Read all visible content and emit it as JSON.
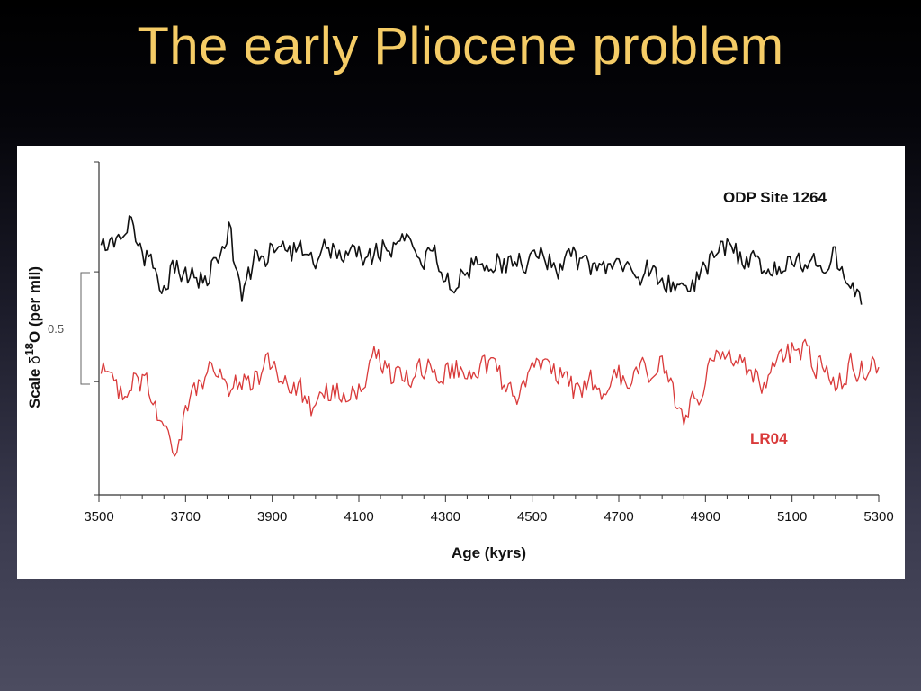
{
  "slide": {
    "title": "The early Pliocene problem",
    "background_top": "#000000",
    "background_bottom": "#4c4c60",
    "title_color": "#f5cc66"
  },
  "chart_data": {
    "type": "line",
    "xlabel": "Age (kyrs)",
    "ylabel_prefix": "Scale ",
    "ylabel_delta": "δ",
    "ylabel_sup": "18",
    "ylabel_suffix": "O (per mil)",
    "scale_bar_label": "0.5",
    "scale_bar_value": 0.5,
    "xlim": [
      3500,
      5300
    ],
    "ylim": [
      0,
      1.0
    ],
    "x_ticks": [
      "3500",
      "3700",
      "3900",
      "4100",
      "4300",
      "4500",
      "4700",
      "4900",
      "5100",
      "5300"
    ],
    "x_tick_values": [
      3500,
      3700,
      3900,
      4100,
      4300,
      4500,
      4700,
      4900,
      5100,
      5300
    ],
    "grid": false,
    "series": [
      {
        "name": "ODP Site 1264",
        "color": "#111111",
        "x_start": 3505,
        "x_end": 5260,
        "x_step": 5,
        "baseline": 0.72,
        "noise_amp": 0.055,
        "seed": 1264,
        "anchors": [
          [
            3505,
            0.72
          ],
          [
            3540,
            0.76
          ],
          [
            3575,
            0.84
          ],
          [
            3600,
            0.72
          ],
          [
            3640,
            0.63
          ],
          [
            3700,
            0.69
          ],
          [
            3745,
            0.63
          ],
          [
            3800,
            0.79
          ],
          [
            3830,
            0.61
          ],
          [
            3860,
            0.7
          ],
          [
            3900,
            0.73
          ],
          [
            3960,
            0.76
          ],
          [
            4000,
            0.71
          ],
          [
            4050,
            0.73
          ],
          [
            4100,
            0.72
          ],
          [
            4150,
            0.71
          ],
          [
            4215,
            0.78
          ],
          [
            4260,
            0.71
          ],
          [
            4310,
            0.64
          ],
          [
            4350,
            0.71
          ],
          [
            4400,
            0.69
          ],
          [
            4450,
            0.7
          ],
          [
            4500,
            0.72
          ],
          [
            4560,
            0.68
          ],
          [
            4600,
            0.73
          ],
          [
            4650,
            0.67
          ],
          [
            4700,
            0.66
          ],
          [
            4750,
            0.68
          ],
          [
            4800,
            0.63
          ],
          [
            4850,
            0.61
          ],
          [
            4900,
            0.69
          ],
          [
            4960,
            0.74
          ],
          [
            5020,
            0.7
          ],
          [
            5060,
            0.66
          ],
          [
            5100,
            0.71
          ],
          [
            5160,
            0.72
          ],
          [
            5210,
            0.68
          ],
          [
            5260,
            0.61
          ]
        ]
      },
      {
        "name": "LR04",
        "color": "#d93a3a",
        "x_start": 3505,
        "x_end": 5300,
        "x_step": 5,
        "baseline": 0.35,
        "noise_amp": 0.06,
        "seed": 404,
        "anchors": [
          [
            3505,
            0.37
          ],
          [
            3540,
            0.33
          ],
          [
            3580,
            0.35
          ],
          [
            3620,
            0.3
          ],
          [
            3645,
            0.2
          ],
          [
            3675,
            0.14
          ],
          [
            3710,
            0.29
          ],
          [
            3760,
            0.37
          ],
          [
            3800,
            0.35
          ],
          [
            3850,
            0.33
          ],
          [
            3900,
            0.38
          ],
          [
            3960,
            0.33
          ],
          [
            3995,
            0.24
          ],
          [
            4050,
            0.32
          ],
          [
            4100,
            0.34
          ],
          [
            4150,
            0.39
          ],
          [
            4200,
            0.35
          ],
          [
            4250,
            0.36
          ],
          [
            4300,
            0.38
          ],
          [
            4350,
            0.4
          ],
          [
            4400,
            0.37
          ],
          [
            4450,
            0.33
          ],
          [
            4500,
            0.35
          ],
          [
            4550,
            0.37
          ],
          [
            4600,
            0.34
          ],
          [
            4650,
            0.31
          ],
          [
            4700,
            0.36
          ],
          [
            4750,
            0.34
          ],
          [
            4800,
            0.38
          ],
          [
            4845,
            0.25
          ],
          [
            4875,
            0.26
          ],
          [
            4920,
            0.4
          ],
          [
            4960,
            0.43
          ],
          [
            5000,
            0.38
          ],
          [
            5040,
            0.3
          ],
          [
            5080,
            0.45
          ],
          [
            5120,
            0.44
          ],
          [
            5160,
            0.38
          ],
          [
            5200,
            0.35
          ],
          [
            5240,
            0.4
          ],
          [
            5270,
            0.39
          ],
          [
            5300,
            0.36
          ]
        ]
      }
    ],
    "legend_placement": "inline labels (top-right for ODP Site 1264, lower-right for LR04)"
  }
}
